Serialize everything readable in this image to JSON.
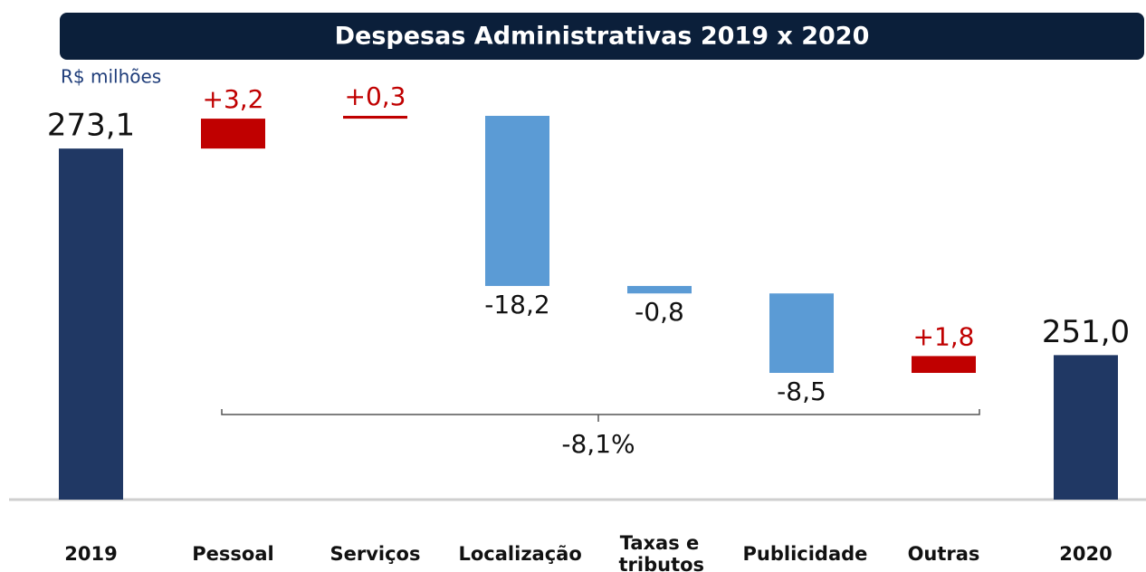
{
  "chart_data": {
    "type": "waterfall",
    "title": "Despesas Administrativas 2019 x 2020",
    "unit_label": "R$ milhões",
    "categories": [
      "2019",
      "Pessoal",
      "Serviços",
      "Localização",
      "Taxas e tributos",
      "Publicidade",
      "Outras",
      "2020"
    ],
    "measure": [
      "total",
      "relative",
      "relative",
      "relative",
      "relative",
      "relative",
      "relative",
      "total"
    ],
    "values": [
      273.1,
      3.2,
      0.3,
      -18.2,
      -0.8,
      -8.5,
      1.8,
      251.0
    ],
    "value_labels": [
      "273,1",
      "+3,2",
      "+0,3",
      "-18,2",
      "-0,8",
      "-8,5",
      "+1,8",
      "251,0"
    ],
    "colors": {
      "total": "#203864",
      "increase": "#c00000",
      "decrease": "#5b9bd5"
    },
    "annotation": "-8,1%"
  }
}
